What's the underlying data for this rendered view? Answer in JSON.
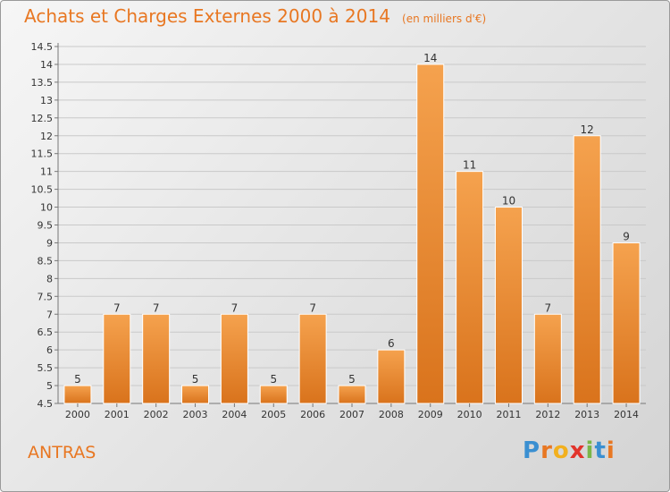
{
  "title": "Achats et Charges Externes 2000 à 2014",
  "unit": "(en milliers d'€)",
  "commune": "ANTRAS",
  "logo": {
    "text": "Proxiti",
    "letters": [
      {
        "ch": "P",
        "color": "#3a8fd1"
      },
      {
        "ch": "r",
        "color": "#e87722"
      },
      {
        "ch": "o",
        "color": "#f2b01e"
      },
      {
        "ch": "x",
        "color": "#e2342b"
      },
      {
        "ch": "i",
        "color": "#7ab648"
      },
      {
        "ch": "t",
        "color": "#3a8fd1"
      },
      {
        "ch": "i",
        "color": "#e87722"
      }
    ]
  },
  "colors": {
    "bar_light": "#f5a24e",
    "bar_dark": "#d9731c",
    "text_accent": "#e87722"
  },
  "chart_data": {
    "type": "bar",
    "categories": [
      "2000",
      "2001",
      "2002",
      "2003",
      "2004",
      "2005",
      "2006",
      "2007",
      "2008",
      "2009",
      "2010",
      "2011",
      "2012",
      "2013",
      "2014"
    ],
    "values": [
      5,
      7,
      7,
      5,
      7,
      5,
      7,
      5,
      6,
      14,
      11,
      10,
      7,
      12,
      9
    ],
    "value_labels": [
      "5",
      "7",
      "7",
      "5",
      "7",
      "5",
      "7",
      "5",
      "6",
      "14",
      "11",
      "10",
      "7",
      "12",
      "9"
    ],
    "yticks": [
      "4.5",
      "5",
      "5.5",
      "6",
      "6.5",
      "7",
      "7.5",
      "8",
      "8.5",
      "9",
      "9.5",
      "10",
      "10.5",
      "11",
      "11.5",
      "12",
      "12.5",
      "13",
      "13.5",
      "14",
      "14.5"
    ],
    "ylim": [
      4.5,
      14.5
    ],
    "grid": true,
    "legend": "none"
  }
}
